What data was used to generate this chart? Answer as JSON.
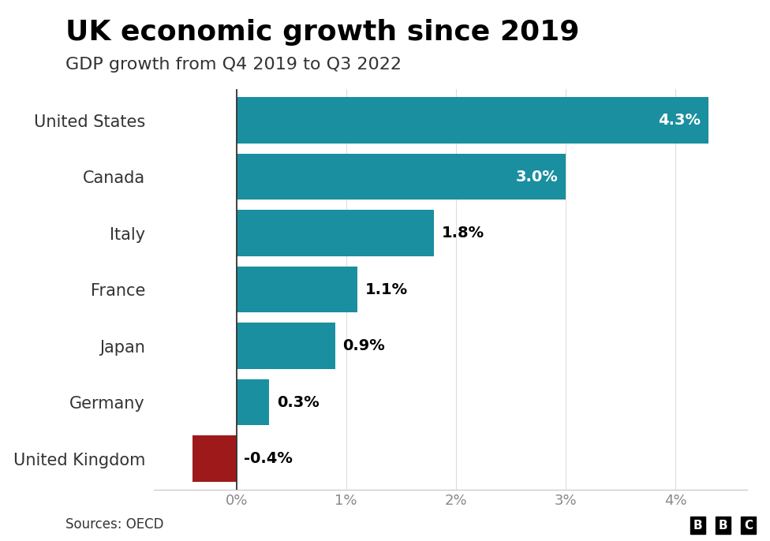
{
  "title": "UK economic growth since 2019",
  "subtitle": "GDP growth from Q4 2019 to Q3 2022",
  "categories": [
    "United States",
    "Canada",
    "Italy",
    "France",
    "Japan",
    "Germany",
    "United Kingdom"
  ],
  "values": [
    4.3,
    3.0,
    1.8,
    1.1,
    0.9,
    0.3,
    -0.4
  ],
  "bar_colors": [
    "#1a8fa0",
    "#1a8fa0",
    "#1a8fa0",
    "#1a8fa0",
    "#1a8fa0",
    "#1a8fa0",
    "#9e1a1a"
  ],
  "label_texts": [
    "4.3%",
    "3.0%",
    "1.8%",
    "1.1%",
    "0.9%",
    "0.3%",
    "-0.4%"
  ],
  "label_colors": [
    "white",
    "white",
    "black",
    "black",
    "black",
    "black",
    "black"
  ],
  "label_ha": [
    "right",
    "right",
    "left",
    "left",
    "left",
    "left",
    "left"
  ],
  "label_x_offset": [
    -0.07,
    -0.07,
    0.07,
    0.07,
    0.07,
    0.07,
    0.07
  ],
  "label_x_base": [
    4.3,
    3.0,
    1.8,
    1.1,
    0.9,
    0.3,
    0.0
  ],
  "source": "Sources: OECD",
  "xlim": [
    -0.75,
    4.65
  ],
  "tick_positions": [
    0,
    1,
    2,
    3,
    4
  ],
  "tick_labels": [
    "0%",
    "1%",
    "2%",
    "3%",
    "4%"
  ],
  "background_color": "#ffffff",
  "title_fontsize": 26,
  "subtitle_fontsize": 16,
  "label_fontsize": 14,
  "tick_fontsize": 13,
  "source_fontsize": 12,
  "bar_height": 0.82,
  "grid_color": "#dddddd",
  "ytick_color": "#333333",
  "bottom_line_color": "#cccccc"
}
